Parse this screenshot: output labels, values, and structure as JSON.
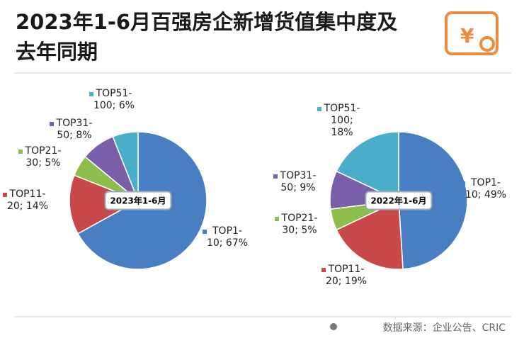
{
  "header": {
    "title": "2023年1-6月百强房企新增货值集中度及去年同期"
  },
  "chart_data": [
    {
      "type": "pie",
      "center_label": "2023年1-6月",
      "categories": [
        "TOP1-10;",
        "TOP11-20;",
        "TOP21-30;",
        "TOP31-50;",
        "TOP51-100;"
      ],
      "values": [
        67,
        14,
        5,
        8,
        6
      ],
      "value_labels": [
        "67%",
        "14%",
        "5%",
        "8%",
        "6%"
      ],
      "colors": [
        "#4a7ec2",
        "#c9484a",
        "#8dbd4b",
        "#7b5fa8",
        "#4aaec9"
      ]
    },
    {
      "type": "pie",
      "center_label": "2022年1-6月",
      "categories": [
        "TOP1-10;",
        "TOP11-20;",
        "TOP21-30;",
        "TOP31-50;",
        "TOP51-100;"
      ],
      "values": [
        49,
        19,
        5,
        9,
        18
      ],
      "value_labels": [
        "49%",
        "19%",
        "5%",
        "9%",
        "18%"
      ],
      "colors": [
        "#4a7ec2",
        "#c9484a",
        "#8dbd4b",
        "#7b5fa8",
        "#4aaec9"
      ]
    }
  ],
  "footer": {
    "source": "数据来源：企业公告、CRIC"
  }
}
